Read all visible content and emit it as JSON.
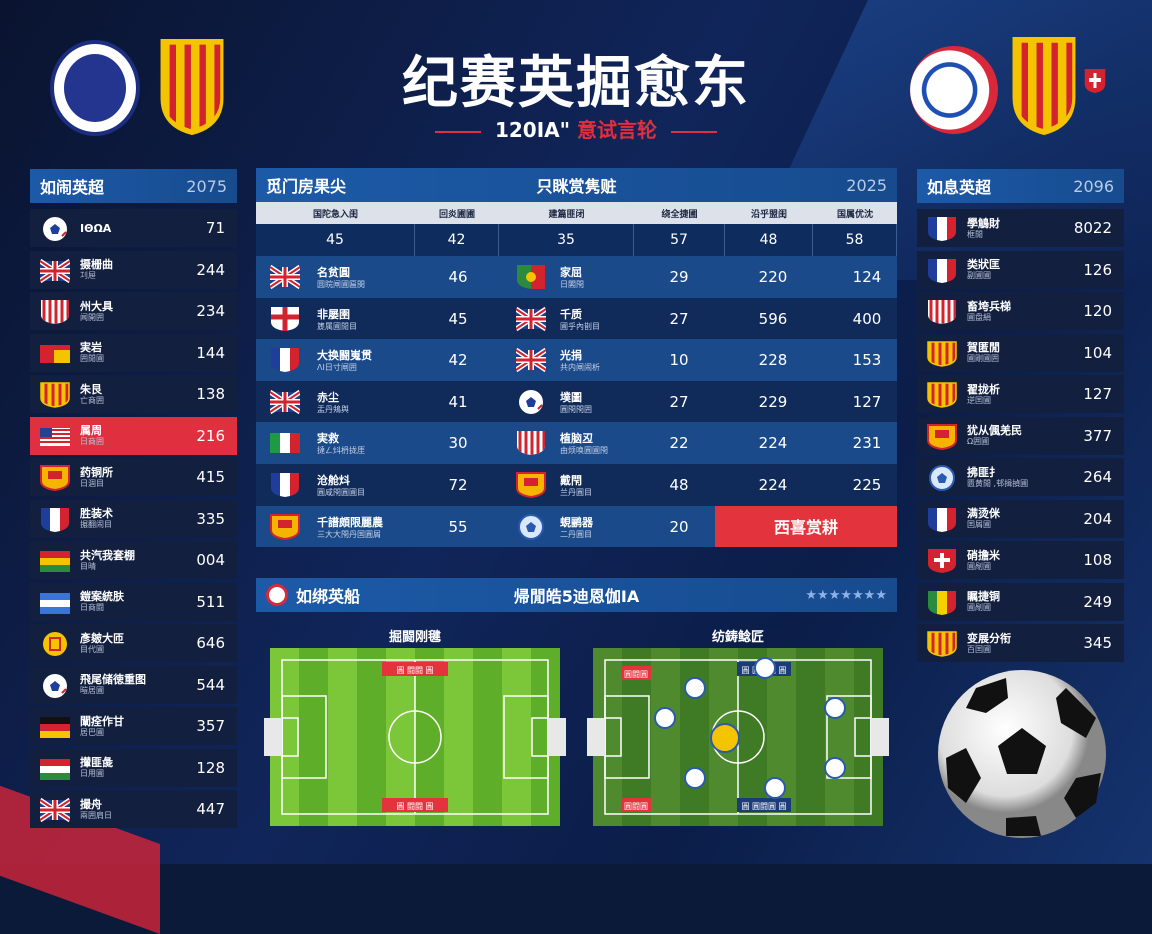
{
  "header": {
    "title": "纪赛英掘愈东",
    "subtitle_num": "120ΙΑ\"",
    "subtitle_red": "意试言轮"
  },
  "colors": {
    "accent": "#e03040",
    "panel": "#1c5aa8",
    "bg": "#0c1a3a"
  },
  "top_logos": [
    "club-crest-round-icon",
    "catalan-crest-icon",
    "soccer-ball-icon",
    "catalan-crest-icon",
    "small-shield-icon"
  ],
  "left": {
    "title": "如闹英超",
    "year": "2075",
    "rows": [
      {
        "icon": "ball",
        "name": "ΙΘΩΑ",
        "sub": "",
        "value": "71"
      },
      {
        "icon": "uk",
        "name": "摄栅曲",
        "sub": "㓚屉",
        "value": "244"
      },
      {
        "icon": "stripes",
        "name": "州大具",
        "sub": "闻開囲",
        "value": "234"
      },
      {
        "icon": "redyellow",
        "name": "実岩",
        "sub": "囲閒圃",
        "value": "144"
      },
      {
        "icon": "catalan",
        "name": "朱艮",
        "sub": "亡商囲",
        "value": "138"
      },
      {
        "icon": "usa",
        "name": "属周",
        "sub": "日商囲",
        "value": "216",
        "highlight": true
      },
      {
        "icon": "yellowcrest",
        "name": "药铜所",
        "sub": "日涸目",
        "value": "415"
      },
      {
        "icon": "france",
        "name": "胜装术",
        "sub": "搌翻闹目",
        "value": "335"
      },
      {
        "icon": "bolivia",
        "name": "共汽我套棚",
        "sub": "目晴",
        "value": "004"
      },
      {
        "icon": "bluewhite",
        "name": "鎧案統肤",
        "sub": "日商闘",
        "value": "511"
      },
      {
        "icon": "yellowcircle",
        "name": "彥皴大匝",
        "sub": "目代圃",
        "value": "646"
      },
      {
        "icon": "ball",
        "name": "飛尾储徳重图",
        "sub": "暟居圃",
        "value": "544"
      },
      {
        "icon": "germany",
        "name": "闡痊作甘",
        "sub": "居巴圃",
        "value": "357"
      },
      {
        "icon": "hungary",
        "name": "攆匪彘",
        "sub": "日用圃",
        "value": "128"
      },
      {
        "icon": "uk",
        "name": "撮舟",
        "sub": "兩囲肩日",
        "value": "447"
      }
    ]
  },
  "center": {
    "title_left": "觅门房果尖",
    "title_mid": "只眯赏隽赃",
    "year": "2025",
    "col_headers": [
      "国陀急入闺",
      "回炎圃圃",
      "建篇匪闭",
      "绕全捷圃",
      "沿乎盟闺",
      "国属优沈"
    ],
    "col_values": [
      "45",
      "42",
      "35",
      "57",
      "48",
      "58"
    ],
    "rows": [
      {
        "l_icon": "uk",
        "l_name": "名贫圓",
        "l_sub": "圆睆闸圃匾閔",
        "v1": "46",
        "r_icon": "greencrest",
        "r_name": "家屈",
        "r_sub": "日閣閇",
        "v2": "29",
        "v3": "220",
        "v4": "124"
      },
      {
        "l_icon": "england",
        "l_name": "非屡圉",
        "l_sub": "篪属圃閒目",
        "v1": "45",
        "r_icon": "uk",
        "r_name": "千质",
        "r_sub": "圃乎內剒目",
        "v2": "27",
        "v3": "596",
        "v4": "400"
      },
      {
        "l_icon": "france",
        "l_name": "大换闘嵬贯",
        "l_sub": "ΛΙ日寸闸囲",
        "v1": "42",
        "r_icon": "uk",
        "r_name": "光捐",
        "r_sub": "共内闸闹析",
        "v2": "10",
        "v3": "228",
        "v4": "153"
      },
      {
        "l_icon": "uk",
        "l_name": "赤尘",
        "l_sub": "盂丹鴩舆",
        "v1": "41",
        "r_icon": "ball",
        "r_name": "墣圖",
        "r_sub": "圓閇閇囲",
        "v2": "27",
        "v3": "229",
        "v4": "127"
      },
      {
        "l_icon": "italy",
        "l_name": "実救",
        "l_sub": "撻ㄥ炓枬拢厓",
        "v1": "30",
        "r_icon": "stripes",
        "r_name": "植脑丒",
        "r_sub": "由烦唤圓圃閇",
        "v2": "22",
        "v3": "224",
        "v4": "231"
      },
      {
        "l_icon": "france",
        "l_name": "沧舱炓",
        "l_sub": "圓咸閇圓圃目",
        "v1": "72",
        "r_icon": "yellowcrest",
        "r_name": "戴閇",
        "r_sub": "兰丹圓目",
        "v2": "48",
        "v3": "224",
        "v4": "225"
      },
      {
        "l_icon": "yellowcrest",
        "l_name": "千譜頗限麗農",
        "l_sub": "三大大閇丹国圓屑",
        "v1": "55",
        "r_icon": "ballblue",
        "r_name": "蜆鹂器",
        "r_sub": "二丹圓目",
        "v2": "20",
        "button": "西喜赏耕"
      }
    ]
  },
  "bottom": {
    "title_left": "如绑英船",
    "title_mid": "帰閒皓5迪恩伽ΙΑ",
    "stars": "★★★★★★★",
    "pitch_left_label": "掘闘刚毽",
    "pitch_right_label": "纺鋳鲶匠",
    "pitch_left_tags": [
      "圓 闘闘 圓",
      "圓 闘闘 圓"
    ],
    "pitch_right_tags": [
      "圓闘圓",
      "圓 圓闘圓 圓",
      "圓闘圓",
      "圓 圓闘圓 圓"
    ]
  },
  "right": {
    "title": "如息英超",
    "year": "2096",
    "rows": [
      {
        "icon": "france",
        "name": "學鵤財",
        "sub": "框閒",
        "value": "8022"
      },
      {
        "icon": "france",
        "name": "类狀匡",
        "sub": "副圃圃",
        "value": "126"
      },
      {
        "icon": "stripes",
        "name": "畜垮兵梯",
        "sub": "圃盘絹",
        "value": "120"
      },
      {
        "icon": "catalan",
        "name": "賀匿閒",
        "sub": "圃剛圃囲",
        "value": "104"
      },
      {
        "icon": "catalan",
        "name": "翟拢析",
        "sub": "逆囯圃",
        "value": "127"
      },
      {
        "icon": "yellowcrest",
        "name": "犹从偑羌民",
        "sub": "Ω囲圃",
        "value": "377"
      },
      {
        "icon": "ballblue",
        "name": "拂匪扌",
        "sub": "匮黄閒 ,邨揖揁圃",
        "value": "264"
      },
      {
        "icon": "france",
        "name": "满烫侎",
        "sub": "囯屑圃",
        "value": "204"
      },
      {
        "icon": "swiss",
        "name": "硝擔米",
        "sub": "圃剮圃",
        "value": "108"
      },
      {
        "icon": "redyellowgreen",
        "name": "瞩捷铜",
        "sub": "圃剮圃",
        "value": "249"
      },
      {
        "icon": "catalan",
        "name": "变展分衔",
        "sub": "百囯圃",
        "value": "345"
      }
    ]
  }
}
